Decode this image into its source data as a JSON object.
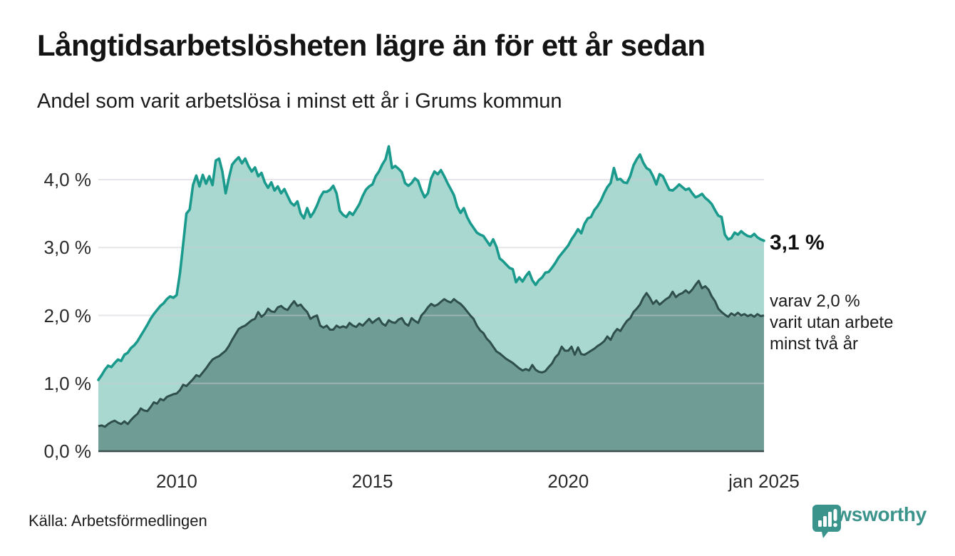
{
  "header": {
    "title": "Långtidsarbetslösheten lägre än för ett år sedan",
    "subtitle": "Andel som varit arbetslösa i minst ett år i Grums kommun"
  },
  "annotations": {
    "latest_value": "3,1 %",
    "secondary": "varav 2,0 %\nvarit utan arbete\nminst två år"
  },
  "source": {
    "label": "Källa: Arbetsförmedlingen"
  },
  "branding": {
    "name": "Newsworthy",
    "icon": "newsworthy-bubble-bars-icon",
    "color": "#3b948c"
  },
  "colors": {
    "line_one_year": "#1a9a8c",
    "fill_one_year": "#a9d8d1",
    "line_two_years": "#2f4f4a",
    "fill_two_years": "#6f9c95",
    "gridline": "#c7ccd1",
    "axis_line": "#3a4f4b",
    "text": "#1a1a1a"
  },
  "chart_data": {
    "type": "area",
    "title": "Långtidsarbetslösheten lägre än för ett år sedan",
    "subtitle": "Andel som varit arbetslösa i minst ett år i Grums kommun",
    "x_start": "2008-01",
    "x_end": "2025-01",
    "frequency": "monthly",
    "unit": "%",
    "ylim": [
      0,
      4.6
    ],
    "grid": true,
    "yticks": [
      {
        "label": "4,0 %",
        "value": 4
      },
      {
        "label": "3,0 %",
        "value": 3
      },
      {
        "label": "2,0 %",
        "value": 2
      },
      {
        "label": "1,0 %",
        "value": 1
      },
      {
        "label": "0,0 %",
        "value": 0
      }
    ],
    "xticks": [
      {
        "label": "2010",
        "year": 2010
      },
      {
        "label": "2015",
        "year": 2015
      },
      {
        "label": "2020",
        "year": 2020
      },
      {
        "label": "jan 2025",
        "year": 2025
      }
    ],
    "latest": {
      "minst_ett_ar": "3,1 %",
      "minst_tva_ar": "2,0 %"
    },
    "series": [
      {
        "name": "Arbetslösa minst ett år",
        "line_color": "#1a9a8c",
        "fill_color": "#a9d8d1",
        "values": [
          1.05,
          1.12,
          1.2,
          1.26,
          1.24,
          1.3,
          1.35,
          1.33,
          1.42,
          1.45,
          1.52,
          1.56,
          1.62,
          1.7,
          1.78,
          1.86,
          1.95,
          2.02,
          2.08,
          2.14,
          2.18,
          2.24,
          2.28,
          2.26,
          2.3,
          2.62,
          3.05,
          3.5,
          3.56,
          3.92,
          4.06,
          3.9,
          4.07,
          3.94,
          4.05,
          3.92,
          4.28,
          4.31,
          4.12,
          3.8,
          4.02,
          4.22,
          4.28,
          4.33,
          4.24,
          4.31,
          4.2,
          4.12,
          4.18,
          4.05,
          4.1,
          3.96,
          3.88,
          3.96,
          3.84,
          3.9,
          3.8,
          3.86,
          3.76,
          3.66,
          3.62,
          3.68,
          3.5,
          3.43,
          3.58,
          3.45,
          3.52,
          3.62,
          3.74,
          3.82,
          3.82,
          3.85,
          3.91,
          3.8,
          3.54,
          3.48,
          3.45,
          3.52,
          3.48,
          3.56,
          3.64,
          3.76,
          3.85,
          3.9,
          3.93,
          4.05,
          4.12,
          4.22,
          4.3,
          4.49,
          4.17,
          4.2,
          4.16,
          4.11,
          3.95,
          3.91,
          3.95,
          4.02,
          3.98,
          3.84,
          3.74,
          3.8,
          4.02,
          4.12,
          4.08,
          4.14,
          4.05,
          3.95,
          3.86,
          3.77,
          3.6,
          3.51,
          3.58,
          3.45,
          3.36,
          3.29,
          3.22,
          3.19,
          3.17,
          3.1,
          3.03,
          3.12,
          3.01,
          2.84,
          2.8,
          2.75,
          2.7,
          2.68,
          2.49,
          2.56,
          2.5,
          2.58,
          2.64,
          2.52,
          2.45,
          2.52,
          2.56,
          2.63,
          2.64,
          2.7,
          2.77,
          2.85,
          2.91,
          2.97,
          3.03,
          3.12,
          3.19,
          3.27,
          3.21,
          3.35,
          3.43,
          3.45,
          3.55,
          3.61,
          3.69,
          3.8,
          3.89,
          3.95,
          4.17,
          4.0,
          4.01,
          3.96,
          3.95,
          4.05,
          4.21,
          4.3,
          4.37,
          4.25,
          4.17,
          4.14,
          4.05,
          3.93,
          4.08,
          4.05,
          3.95,
          3.85,
          3.84,
          3.88,
          3.93,
          3.89,
          3.85,
          3.87,
          3.8,
          3.74,
          3.76,
          3.79,
          3.73,
          3.69,
          3.64,
          3.55,
          3.47,
          3.45,
          3.19,
          3.12,
          3.14,
          3.22,
          3.19,
          3.24,
          3.2,
          3.17,
          3.16,
          3.2,
          3.15,
          3.12,
          3.1
        ]
      },
      {
        "name": "varav arbetslösa minst två år",
        "line_color": "#2f4f4a",
        "fill_color": "#6f9c95",
        "values": [
          0.37,
          0.38,
          0.36,
          0.4,
          0.43,
          0.45,
          0.42,
          0.4,
          0.44,
          0.4,
          0.46,
          0.51,
          0.55,
          0.63,
          0.6,
          0.59,
          0.65,
          0.72,
          0.7,
          0.77,
          0.75,
          0.8,
          0.82,
          0.84,
          0.85,
          0.9,
          0.98,
          0.96,
          1.01,
          1.06,
          1.12,
          1.1,
          1.16,
          1.22,
          1.29,
          1.35,
          1.38,
          1.4,
          1.44,
          1.48,
          1.55,
          1.64,
          1.72,
          1.8,
          1.83,
          1.85,
          1.89,
          1.93,
          1.95,
          2.05,
          1.98,
          2.02,
          2.1,
          2.06,
          2.05,
          2.12,
          2.14,
          2.1,
          2.08,
          2.15,
          2.21,
          2.14,
          2.16,
          2.1,
          2.05,
          1.95,
          1.98,
          2.0,
          1.85,
          1.82,
          1.85,
          1.79,
          1.79,
          1.85,
          1.82,
          1.84,
          1.82,
          1.89,
          1.85,
          1.83,
          1.88,
          1.85,
          1.9,
          1.95,
          1.89,
          1.93,
          1.96,
          1.88,
          1.85,
          1.93,
          1.9,
          1.89,
          1.94,
          1.96,
          1.88,
          1.85,
          1.96,
          1.92,
          1.89,
          2.0,
          2.05,
          2.12,
          2.17,
          2.14,
          2.16,
          2.2,
          2.24,
          2.21,
          2.19,
          2.24,
          2.2,
          2.17,
          2.12,
          2.06,
          2.0,
          1.95,
          1.85,
          1.78,
          1.74,
          1.66,
          1.61,
          1.54,
          1.47,
          1.44,
          1.4,
          1.36,
          1.33,
          1.3,
          1.26,
          1.22,
          1.19,
          1.21,
          1.19,
          1.27,
          1.2,
          1.17,
          1.16,
          1.18,
          1.24,
          1.29,
          1.38,
          1.43,
          1.54,
          1.48,
          1.48,
          1.54,
          1.42,
          1.53,
          1.43,
          1.42,
          1.45,
          1.48,
          1.51,
          1.55,
          1.58,
          1.62,
          1.69,
          1.64,
          1.74,
          1.8,
          1.77,
          1.85,
          1.92,
          1.96,
          2.05,
          2.1,
          2.16,
          2.26,
          2.33,
          2.26,
          2.17,
          2.22,
          2.16,
          2.2,
          2.24,
          2.27,
          2.35,
          2.27,
          2.31,
          2.33,
          2.37,
          2.33,
          2.38,
          2.45,
          2.51,
          2.4,
          2.43,
          2.38,
          2.28,
          2.21,
          2.1,
          2.05,
          2.01,
          1.98,
          2.03,
          2.0,
          2.04,
          2.0,
          2.02,
          1.99,
          2.01,
          1.98,
          2.02,
          1.99,
          2.0
        ]
      }
    ]
  }
}
